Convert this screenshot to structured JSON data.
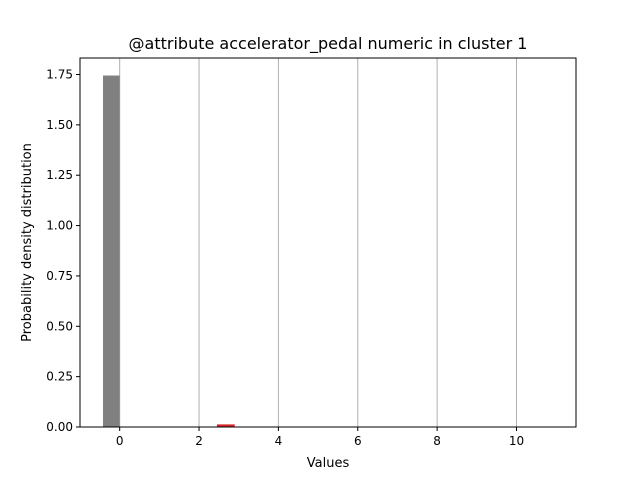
{
  "chart_data": {
    "type": "bar",
    "title": "@attribute accelerator_pedal numeric in cluster  1",
    "xlabel": "Values",
    "ylabel": "Probability density distribution",
    "xlim": [
      -1.0,
      11.5
    ],
    "ylim": [
      0.0,
      1.832
    ],
    "xticks": [
      0,
      2,
      4,
      6,
      8,
      10
    ],
    "xtick_labels": [
      "0",
      "2",
      "4",
      "6",
      "8",
      "10"
    ],
    "yticks": [
      0.0,
      0.25,
      0.5,
      0.75,
      1.0,
      1.25,
      1.5,
      1.75
    ],
    "ytick_labels": [
      "0.00",
      "0.25",
      "0.50",
      "0.75",
      "1.00",
      "1.25",
      "1.50",
      "1.75"
    ],
    "grid": {
      "x": true,
      "y": false
    },
    "series": [
      {
        "color": "#808080",
        "bars": [
          {
            "x_start": -0.42,
            "x_end": 0.0,
            "value": 1.745
          }
        ]
      },
      {
        "color": "#d62728",
        "bars": [
          {
            "x_start": 2.45,
            "x_end": 2.9,
            "value": 0.013
          }
        ]
      }
    ],
    "colors": {
      "axes": "#000000",
      "grid": "#b0b0b0",
      "background": "#ffffff"
    }
  }
}
